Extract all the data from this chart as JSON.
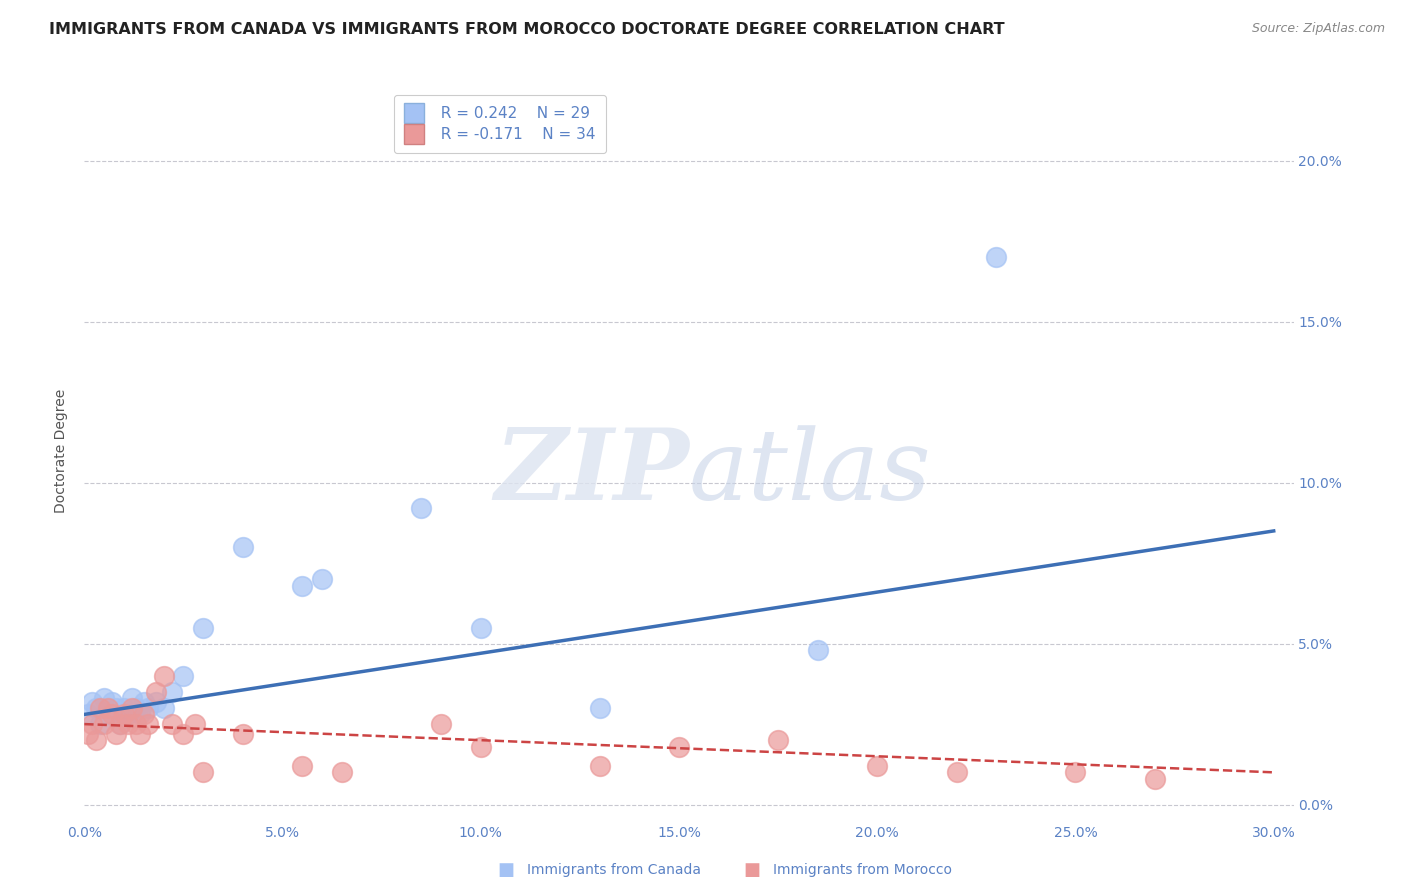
{
  "title": "IMMIGRANTS FROM CANADA VS IMMIGRANTS FROM MOROCCO DOCTORATE DEGREE CORRELATION CHART",
  "source": "Source: ZipAtlas.com",
  "ylabel": "Doctorate Degree",
  "xlim": [
    0.0,
    0.305
  ],
  "ylim": [
    -0.005,
    0.225
  ],
  "ytick_right_labels": [
    "0.0%",
    "5.0%",
    "10.0%",
    "15.0%",
    "20.0%"
  ],
  "ytick_right_vals": [
    0.0,
    0.05,
    0.1,
    0.15,
    0.2
  ],
  "xtick_labels": [
    "0.0%",
    "5.0%",
    "10.0%",
    "15.0%",
    "20.0%",
    "25.0%",
    "30.0%"
  ],
  "xtick_vals": [
    0.0,
    0.05,
    0.1,
    0.15,
    0.2,
    0.25,
    0.3
  ],
  "legend_r_canada": "R = 0.242",
  "legend_n_canada": "N = 29",
  "legend_r_morocco": "R = -0.171",
  "legend_n_morocco": "N = 34",
  "color_canada": "#a4c2f4",
  "color_morocco": "#ea9999",
  "color_canada_line": "#3d6fb5",
  "color_morocco_line": "#cc4444",
  "color_right_axis": "#5b82c5",
  "background_color": "#ffffff",
  "grid_color": "#c8c8d0",
  "canada_x": [
    0.001,
    0.002,
    0.003,
    0.004,
    0.005,
    0.006,
    0.007,
    0.008,
    0.009,
    0.01,
    0.011,
    0.012,
    0.013,
    0.014,
    0.015,
    0.016,
    0.018,
    0.02,
    0.022,
    0.025,
    0.03,
    0.04,
    0.055,
    0.06,
    0.085,
    0.1,
    0.13,
    0.185,
    0.23
  ],
  "canada_y": [
    0.028,
    0.032,
    0.03,
    0.025,
    0.033,
    0.028,
    0.032,
    0.03,
    0.025,
    0.03,
    0.028,
    0.033,
    0.03,
    0.028,
    0.032,
    0.03,
    0.032,
    0.03,
    0.035,
    0.04,
    0.055,
    0.08,
    0.068,
    0.07,
    0.092,
    0.055,
    0.03,
    0.048,
    0.17
  ],
  "morocco_x": [
    0.001,
    0.002,
    0.003,
    0.004,
    0.005,
    0.006,
    0.007,
    0.008,
    0.009,
    0.01,
    0.011,
    0.012,
    0.013,
    0.014,
    0.015,
    0.016,
    0.018,
    0.02,
    0.022,
    0.025,
    0.028,
    0.03,
    0.04,
    0.055,
    0.065,
    0.09,
    0.1,
    0.13,
    0.15,
    0.175,
    0.2,
    0.22,
    0.25,
    0.27
  ],
  "morocco_y": [
    0.022,
    0.025,
    0.02,
    0.03,
    0.025,
    0.03,
    0.028,
    0.022,
    0.025,
    0.028,
    0.025,
    0.03,
    0.025,
    0.022,
    0.028,
    0.025,
    0.035,
    0.04,
    0.025,
    0.022,
    0.025,
    0.01,
    0.022,
    0.012,
    0.01,
    0.025,
    0.018,
    0.012,
    0.018,
    0.02,
    0.012,
    0.01,
    0.01,
    0.008
  ],
  "canada_trend_x": [
    0.0,
    0.3
  ],
  "canada_trend_y": [
    0.028,
    0.085
  ],
  "morocco_trend_x": [
    0.0,
    0.3
  ],
  "morocco_trend_y": [
    0.025,
    0.01
  ],
  "title_fontsize": 11.5,
  "source_fontsize": 9,
  "axis_label_fontsize": 10,
  "tick_fontsize": 10,
  "legend_fontsize": 11
}
